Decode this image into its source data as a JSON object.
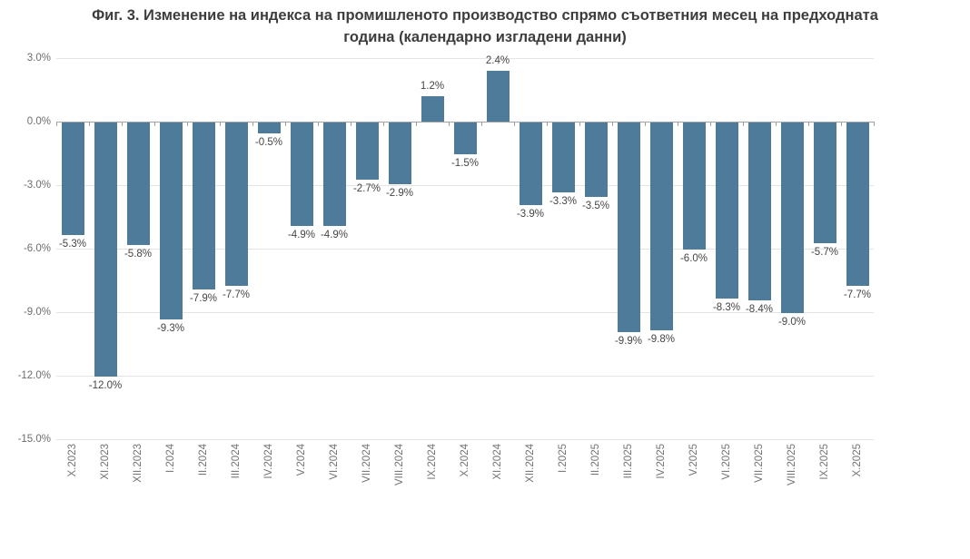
{
  "figure": {
    "title_lines": [
      "Фиг. 3. Изменение на индекса на промишленото производство спрямо съответния месец на предходната",
      "година (календарно изгладени данни)"
    ]
  },
  "chart_data": {
    "type": "bar",
    "title": "Фиг. 3. Изменение на индекса на промишленото производство спрямо съответния месец на предходната година (календарно изгладени данни)",
    "xlabel": "",
    "ylabel": "",
    "categories": [
      "X.2023",
      "XI.2023",
      "XII.2023",
      "I.2024",
      "II.2024",
      "III.2024",
      "IV.2024",
      "V.2024",
      "VI.2024",
      "VII.2024",
      "VIII.2024",
      "IX.2024",
      "X.2024",
      "XI.2024",
      "XII.2024",
      "I.2025",
      "II.2025",
      "III.2025",
      "IV.2025",
      "V.2025",
      "VI.2025",
      "VII.2025",
      "VIII.2025",
      "IX.2025",
      "X.2025"
    ],
    "values": [
      -5.3,
      -12.0,
      -5.8,
      -9.3,
      -7.9,
      -7.7,
      -0.5,
      -4.9,
      -4.9,
      -2.7,
      -2.9,
      1.2,
      -1.5,
      2.4,
      -3.9,
      -3.3,
      -3.5,
      -9.9,
      -9.8,
      -6.0,
      -8.3,
      -8.4,
      -9.0,
      -5.7,
      -7.7
    ],
    "y_ticks": [
      3.0,
      0.0,
      -3.0,
      -6.0,
      -9.0,
      -12.0,
      -15.0
    ],
    "y_tick_labels": [
      "3.0%",
      "0.0%",
      "-3.0%",
      "-6.0%",
      "-9.0%",
      "-12.0%",
      "-15.0%"
    ],
    "ylim": [
      -15.0,
      3.0
    ],
    "grid": true,
    "legend": "none",
    "data_labels": "outside-end",
    "data_label_suffix": "%",
    "data_label_decimals": 1
  },
  "colors": {
    "bar": "#4d7b99",
    "title": "#3d3d3d",
    "data_label": "#454545",
    "axis_label": "#757575",
    "y_axis_label": "#6e6e6e",
    "gridline": "#e4e4e4",
    "axis_line": "#a3a3a3",
    "background": "#ffffff"
  }
}
